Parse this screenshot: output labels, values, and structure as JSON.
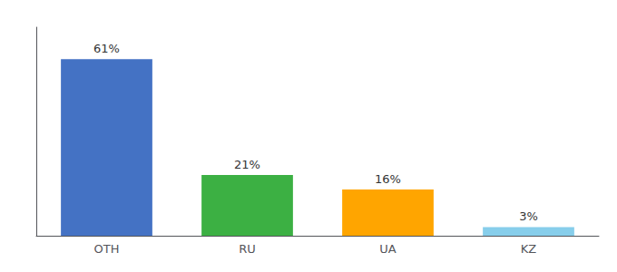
{
  "chart_data": {
    "type": "bar",
    "categories": [
      "OTH",
      "RU",
      "UA",
      "KZ"
    ],
    "values": [
      61,
      21,
      16,
      3
    ],
    "value_labels": [
      "61%",
      "21%",
      "16%",
      "3%"
    ],
    "data_labels": true,
    "colors": [
      "#4472C4",
      "#3CB043",
      "#FFA500",
      "#87CEEB"
    ],
    "ylim": [
      0,
      72
    ],
    "yticks": [],
    "tick_labels": "x",
    "grid": false
  }
}
